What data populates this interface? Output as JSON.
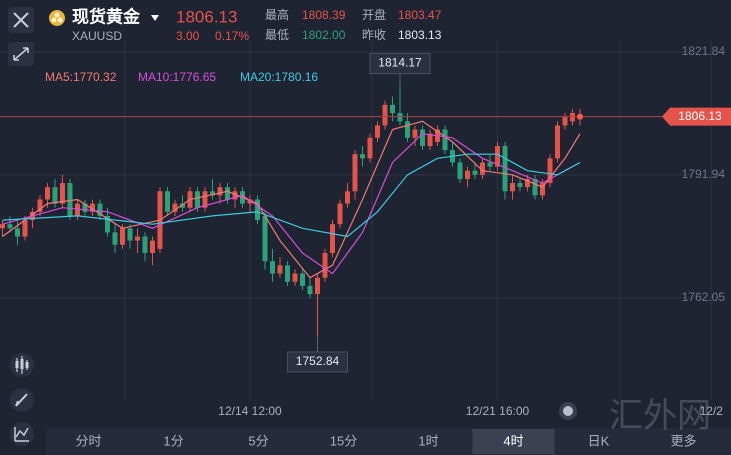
{
  "header": {
    "title": "现货黄金",
    "symbol": "XAUUSD",
    "price": "1806.13",
    "change": "3.00",
    "change_pct": "0.17%",
    "stats": [
      {
        "label": "最高",
        "value": "1808.39"
      },
      {
        "label": "开盘",
        "value": "1803.47"
      },
      {
        "label": "最低",
        "value": "1802.00"
      },
      {
        "label": "昨收",
        "value": "1803.13"
      }
    ]
  },
  "tabs": [
    "分时",
    "1分",
    "5分",
    "15分",
    "1时",
    "4时",
    "日K",
    "更多"
  ],
  "selected_tab": 5,
  "watermark": "汇外网",
  "chart_data": {
    "type": "candlestick",
    "up_color": "#e5534b",
    "down_color": "#2aa37a",
    "ylim": [
      1737.27,
      1824.76
    ],
    "yticks": [
      1821.84,
      1791.94,
      1762.05
    ],
    "xlim": [
      -0.33,
      97.13
    ],
    "xticks": [
      {
        "value": 33,
        "label": "12/14 12:00"
      },
      {
        "value": 66,
        "label": "12/21 16:00"
      },
      {
        "value": 94.5,
        "label": "12/2"
      }
    ],
    "last": 1806.13,
    "annotations": [
      {
        "x": 53,
        "y": 1814.17,
        "position": "above"
      },
      {
        "x": 42,
        "y": 1752.84,
        "position": "below"
      }
    ],
    "candles": [
      [
        1779,
        1781,
        1777,
        1780
      ],
      [
        1780,
        1782,
        1778,
        1779
      ],
      [
        1779,
        1781,
        1775,
        1777
      ],
      [
        1777,
        1782,
        1776,
        1781
      ],
      [
        1781,
        1784,
        1779,
        1783
      ],
      [
        1783,
        1787,
        1782,
        1786
      ],
      [
        1786,
        1790,
        1784,
        1789
      ],
      [
        1789,
        1791,
        1784,
        1785
      ],
      [
        1785,
        1792,
        1784,
        1790
      ],
      [
        1790,
        1791,
        1781,
        1782
      ],
      [
        1782,
        1786,
        1781,
        1785
      ],
      [
        1785,
        1786,
        1782,
        1783
      ],
      [
        1783,
        1786,
        1782,
        1785
      ],
      [
        1785,
        1786,
        1781,
        1782
      ],
      [
        1782,
        1784,
        1777,
        1778
      ],
      [
        1778,
        1780,
        1773,
        1775
      ],
      [
        1775,
        1780,
        1774,
        1779
      ],
      [
        1779,
        1780,
        1774,
        1776
      ],
      [
        1776,
        1779,
        1773,
        1777
      ],
      [
        1777,
        1778,
        1771,
        1773
      ],
      [
        1773,
        1777,
        1770,
        1776
      ],
      [
        1774,
        1789,
        1773,
        1788
      ],
      [
        1788,
        1789,
        1782,
        1783
      ],
      [
        1783,
        1786,
        1782,
        1785
      ],
      [
        1785,
        1787,
        1783,
        1784
      ],
      [
        1784,
        1789,
        1783,
        1788
      ],
      [
        1788,
        1789,
        1783,
        1784
      ],
      [
        1784,
        1789,
        1783,
        1788
      ],
      [
        1788,
        1791,
        1786,
        1787
      ],
      [
        1787,
        1790,
        1785,
        1789
      ],
      [
        1789,
        1790,
        1785,
        1786
      ],
      [
        1786,
        1789,
        1784,
        1788
      ],
      [
        1788,
        1789,
        1784,
        1785
      ],
      [
        1785,
        1787,
        1783,
        1786
      ],
      [
        1786,
        1787,
        1780,
        1781
      ],
      [
        1782,
        1783,
        1769,
        1771
      ],
      [
        1771,
        1774,
        1766,
        1768
      ],
      [
        1768,
        1772,
        1767,
        1770
      ],
      [
        1770,
        1771,
        1765,
        1766
      ],
      [
        1766,
        1769,
        1765,
        1768
      ],
      [
        1768,
        1769,
        1764,
        1765
      ],
      [
        1765,
        1767,
        1762,
        1763
      ],
      [
        1763,
        1768,
        1752.84,
        1767
      ],
      [
        1767,
        1774,
        1766,
        1773
      ],
      [
        1773,
        1781,
        1772,
        1780
      ],
      [
        1780,
        1786,
        1779,
        1785
      ],
      [
        1785,
        1790,
        1784,
        1788
      ],
      [
        1788,
        1798,
        1786,
        1797
      ],
      [
        1797,
        1799,
        1794,
        1796
      ],
      [
        1796,
        1802,
        1795,
        1801
      ],
      [
        1801,
        1805,
        1800,
        1804
      ],
      [
        1804,
        1810,
        1803,
        1809
      ],
      [
        1809,
        1811,
        1805,
        1807
      ],
      [
        1807,
        1814.17,
        1804,
        1805
      ],
      [
        1805,
        1807,
        1800,
        1801
      ],
      [
        1801,
        1804,
        1799,
        1803
      ],
      [
        1803,
        1804,
        1798,
        1799
      ],
      [
        1799,
        1803,
        1798,
        1802
      ],
      [
        1800,
        1804,
        1799,
        1803
      ],
      [
        1803,
        1804,
        1797,
        1798
      ],
      [
        1798,
        1800,
        1794,
        1795
      ],
      [
        1795,
        1796,
        1790,
        1791
      ],
      [
        1791,
        1794,
        1789,
        1793
      ],
      [
        1793,
        1795,
        1791,
        1792
      ],
      [
        1792,
        1796,
        1791,
        1795
      ],
      [
        1795,
        1797,
        1793,
        1794
      ],
      [
        1794,
        1800,
        1793,
        1799
      ],
      [
        1799,
        1800,
        1786,
        1788
      ],
      [
        1788,
        1792,
        1786,
        1790
      ],
      [
        1790,
        1791,
        1788,
        1789
      ],
      [
        1789,
        1792,
        1788,
        1791
      ],
      [
        1791,
        1792,
        1786,
        1787
      ],
      [
        1787,
        1791,
        1786,
        1790
      ],
      [
        1790,
        1797,
        1789,
        1796
      ],
      [
        1796,
        1805,
        1795,
        1804
      ],
      [
        1804,
        1807,
        1803,
        1806
      ],
      [
        1805,
        1808,
        1804,
        1807
      ],
      [
        1805.5,
        1808,
        1804,
        1806.13
      ]
    ],
    "series": [
      {
        "name": "MA5:1770.32",
        "color": "#f07a72",
        "x": [
          0,
          6,
          10,
          16,
          21,
          25,
          30,
          34,
          37,
          41,
          44,
          48,
          52,
          56,
          60,
          64,
          68,
          72,
          75,
          77
        ],
        "values": [
          1777,
          1785,
          1786,
          1779,
          1781,
          1786,
          1788,
          1785,
          1776,
          1767,
          1770,
          1786,
          1803,
          1805,
          1800,
          1793,
          1792,
          1789,
          1796,
          1802
        ]
      },
      {
        "name": "MA10:1776.65",
        "color": "#d64fd6",
        "x": [
          0,
          8,
          14,
          20,
          26,
          32,
          36,
          40,
          44,
          48,
          52,
          56,
          60,
          64,
          68,
          72,
          77
        ],
        "values": [
          1780,
          1784,
          1783,
          1779,
          1784,
          1787,
          1782,
          1773,
          1768,
          1778,
          1795,
          1802,
          1801,
          1796,
          1793,
          1790,
          1795
        ]
      },
      {
        "name": "MA20:1780.16",
        "color": "#3ecbe0",
        "x": [
          0,
          10,
          20,
          28,
          34,
          40,
          46,
          50,
          54,
          58,
          62,
          66,
          70,
          74,
          77
        ],
        "values": [
          1781,
          1782,
          1780,
          1782,
          1783,
          1779,
          1777,
          1783,
          1792,
          1796,
          1797,
          1797,
          1793,
          1792,
          1795
        ]
      }
    ]
  }
}
